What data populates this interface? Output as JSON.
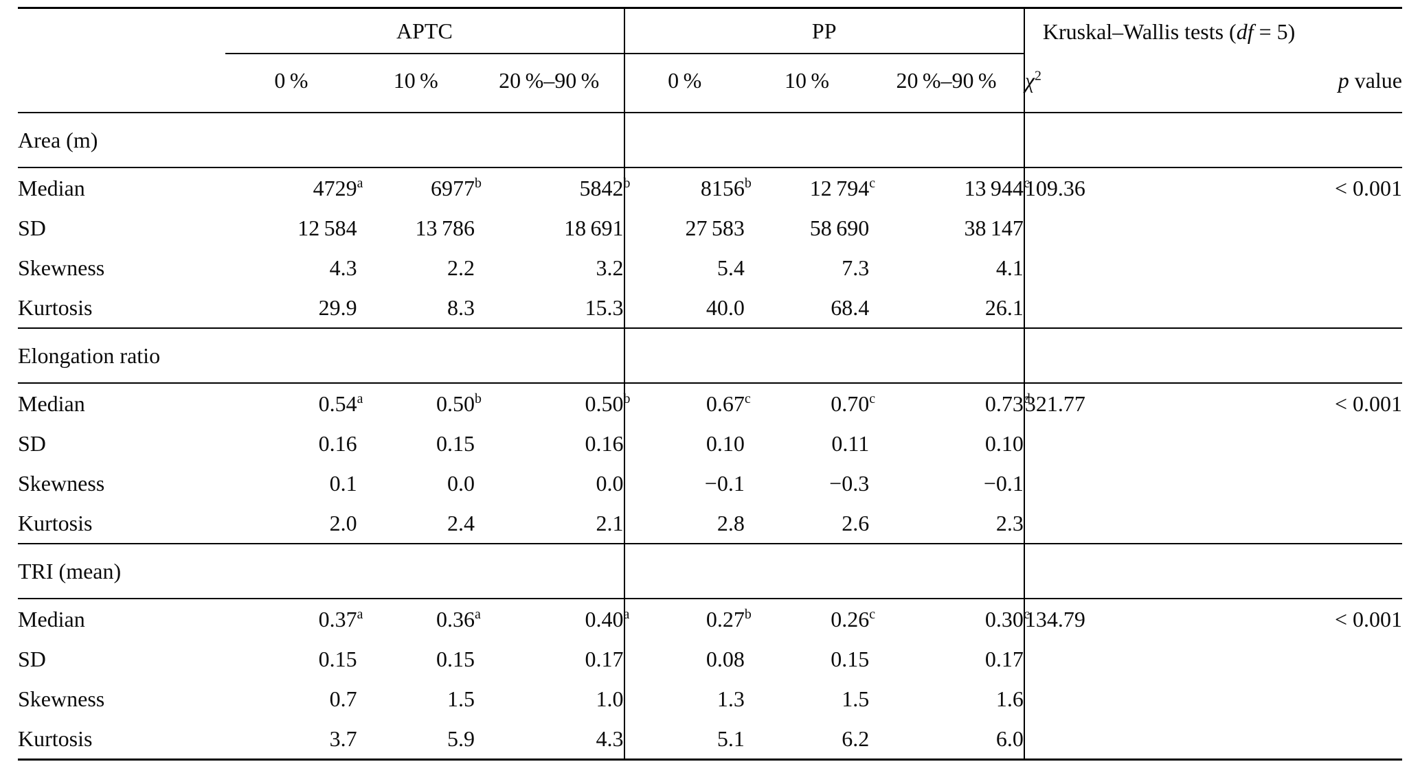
{
  "table": {
    "groups": {
      "aptc": "APTC",
      "pp": "PP",
      "kw_prefix": "Kruskal–Wallis tests (",
      "kw_df": "df",
      "kw_suffix": " = 5)"
    },
    "subheaders": {
      "aptc": [
        "0 %",
        "10 %",
        "20 %–90 %"
      ],
      "pp": [
        "0 %",
        "10 %",
        "20 %–90 %"
      ],
      "chi_base": "χ",
      "chi_sup": "2",
      "p_italic": "p",
      "p_rest": " value"
    },
    "sections": [
      {
        "title": "Area (m)",
        "rows": [
          {
            "label": "Median",
            "aptc": [
              {
                "t": "4729",
                "s": "a"
              },
              {
                "t": "6977",
                "s": "b"
              },
              {
                "t": "5842",
                "s": "b"
              }
            ],
            "pp": [
              {
                "t": "8156",
                "s": "b"
              },
              {
                "t": "12 794",
                "s": "c"
              },
              {
                "t": "13 944",
                "s": "c"
              }
            ],
            "chi2": "109.36",
            "p": "< 0.001"
          },
          {
            "label": "SD",
            "aptc": [
              {
                "t": "12 584"
              },
              {
                "t": "13 786"
              },
              {
                "t": "18 691"
              }
            ],
            "pp": [
              {
                "t": "27 583"
              },
              {
                "t": "58 690"
              },
              {
                "t": "38 147"
              }
            ],
            "chi2": "",
            "p": ""
          },
          {
            "label": "Skewness",
            "aptc": [
              {
                "t": "4.3"
              },
              {
                "t": "2.2"
              },
              {
                "t": "3.2"
              }
            ],
            "pp": [
              {
                "t": "5.4"
              },
              {
                "t": "7.3"
              },
              {
                "t": "4.1"
              }
            ],
            "chi2": "",
            "p": ""
          },
          {
            "label": "Kurtosis",
            "aptc": [
              {
                "t": "29.9"
              },
              {
                "t": "8.3"
              },
              {
                "t": "15.3"
              }
            ],
            "pp": [
              {
                "t": "40.0"
              },
              {
                "t": "68.4"
              },
              {
                "t": "26.1"
              }
            ],
            "chi2": "",
            "p": ""
          }
        ]
      },
      {
        "title": "Elongation ratio",
        "rows": [
          {
            "label": "Median",
            "aptc": [
              {
                "t": "0.54",
                "s": "a"
              },
              {
                "t": "0.50",
                "s": "b"
              },
              {
                "t": "0.50",
                "s": "b"
              }
            ],
            "pp": [
              {
                "t": "0.67",
                "s": "c"
              },
              {
                "t": "0.70",
                "s": "c"
              },
              {
                "t": "0.73",
                "s": "d"
              }
            ],
            "chi2": "321.77",
            "p": "< 0.001"
          },
          {
            "label": "SD",
            "aptc": [
              {
                "t": "0.16"
              },
              {
                "t": "0.15"
              },
              {
                "t": "0.16"
              }
            ],
            "pp": [
              {
                "t": "0.10"
              },
              {
                "t": "0.11"
              },
              {
                "t": "0.10"
              }
            ],
            "chi2": "",
            "p": ""
          },
          {
            "label": "Skewness",
            "aptc": [
              {
                "t": "0.1"
              },
              {
                "t": "0.0"
              },
              {
                "t": "0.0"
              }
            ],
            "pp": [
              {
                "t": "−0.1"
              },
              {
                "t": "−0.3"
              },
              {
                "t": "−0.1"
              }
            ],
            "chi2": "",
            "p": ""
          },
          {
            "label": "Kurtosis",
            "aptc": [
              {
                "t": "2.0"
              },
              {
                "t": "2.4"
              },
              {
                "t": "2.1"
              }
            ],
            "pp": [
              {
                "t": "2.8"
              },
              {
                "t": "2.6"
              },
              {
                "t": "2.3"
              }
            ],
            "chi2": "",
            "p": ""
          }
        ]
      },
      {
        "title": "TRI (mean)",
        "rows": [
          {
            "label": "Median",
            "aptc": [
              {
                "t": "0.37",
                "s": "a"
              },
              {
                "t": "0.36",
                "s": "a"
              },
              {
                "t": "0.40",
                "s": "a"
              }
            ],
            "pp": [
              {
                "t": "0.27",
                "s": "b"
              },
              {
                "t": "0.26",
                "s": "c"
              },
              {
                "t": "0.30",
                "s": "c"
              }
            ],
            "chi2": "134.79",
            "p": "< 0.001"
          },
          {
            "label": "SD",
            "aptc": [
              {
                "t": "0.15"
              },
              {
                "t": "0.15"
              },
              {
                "t": "0.17"
              }
            ],
            "pp": [
              {
                "t": "0.08"
              },
              {
                "t": "0.15"
              },
              {
                "t": "0.17"
              }
            ],
            "chi2": "",
            "p": ""
          },
          {
            "label": "Skewness",
            "aptc": [
              {
                "t": "0.7"
              },
              {
                "t": "1.5"
              },
              {
                "t": "1.0"
              }
            ],
            "pp": [
              {
                "t": "1.3"
              },
              {
                "t": "1.5"
              },
              {
                "t": "1.6"
              }
            ],
            "chi2": "",
            "p": ""
          },
          {
            "label": "Kurtosis",
            "aptc": [
              {
                "t": "3.7"
              },
              {
                "t": "5.9"
              },
              {
                "t": "4.3"
              }
            ],
            "pp": [
              {
                "t": "5.1"
              },
              {
                "t": "6.2"
              },
              {
                "t": "6.0"
              }
            ],
            "chi2": "",
            "p": ""
          }
        ]
      }
    ]
  }
}
